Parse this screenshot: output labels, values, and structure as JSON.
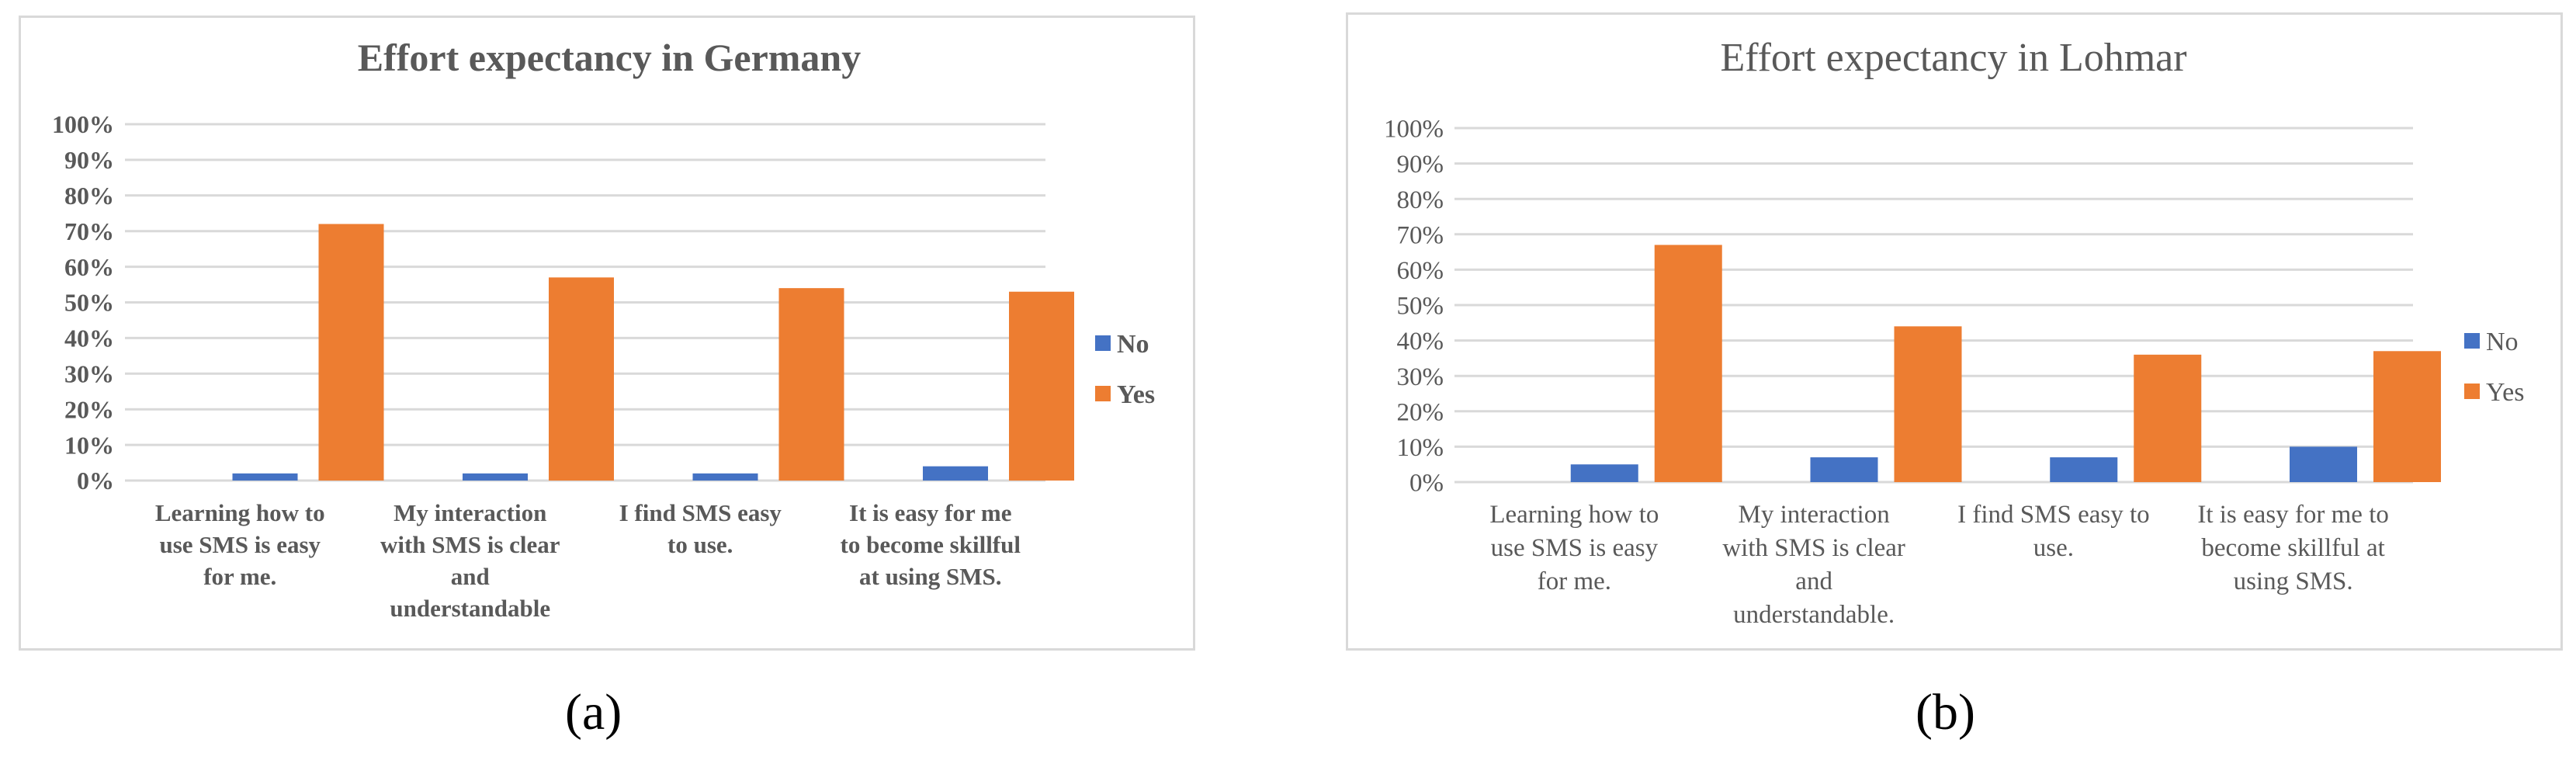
{
  "colors": {
    "no": "#4472c4",
    "yes": "#ed7d31",
    "grid": "#d9d9d9",
    "text": "#595959"
  },
  "captions": {
    "a": "(a)",
    "b": "(b)"
  },
  "chart_data": [
    {
      "type": "bar",
      "title": "Effort expectancy in Germany",
      "categories": [
        [
          "Learning how to",
          "use SMS is easy",
          "for me."
        ],
        [
          "My interaction",
          "with SMS is clear",
          "and",
          "understandable"
        ],
        [
          "I find SMS easy",
          "to use."
        ],
        [
          "It is easy for me",
          "to become skillful",
          "at using SMS."
        ]
      ],
      "series": [
        {
          "name": "No",
          "values": [
            2,
            2,
            2,
            4
          ]
        },
        {
          "name": "Yes",
          "values": [
            72,
            57,
            54,
            53
          ]
        }
      ],
      "ylim": [
        0,
        100
      ],
      "yticks": [
        "0%",
        "10%",
        "20%",
        "30%",
        "40%",
        "50%",
        "60%",
        "70%",
        "80%",
        "90%",
        "100%"
      ],
      "grid": true,
      "legend": "right",
      "xlabel": "",
      "ylabel": ""
    },
    {
      "type": "bar",
      "title": "Effort expectancy in Lohmar",
      "categories": [
        [
          "Learning how to",
          "use SMS is easy",
          "for me."
        ],
        [
          "My interaction",
          "with SMS is clear",
          "and",
          "understandable."
        ],
        [
          "I find SMS easy to",
          "use."
        ],
        [
          "It is easy for me to",
          "become skillful at",
          "using SMS."
        ]
      ],
      "series": [
        {
          "name": "No",
          "values": [
            5,
            7,
            7,
            10
          ]
        },
        {
          "name": "Yes",
          "values": [
            67,
            44,
            36,
            37
          ]
        }
      ],
      "ylim": [
        0,
        100
      ],
      "yticks": [
        "0%",
        "10%",
        "20%",
        "30%",
        "40%",
        "50%",
        "60%",
        "70%",
        "80%",
        "90%",
        "100%"
      ],
      "grid": true,
      "legend": "right",
      "xlabel": "",
      "ylabel": ""
    }
  ]
}
